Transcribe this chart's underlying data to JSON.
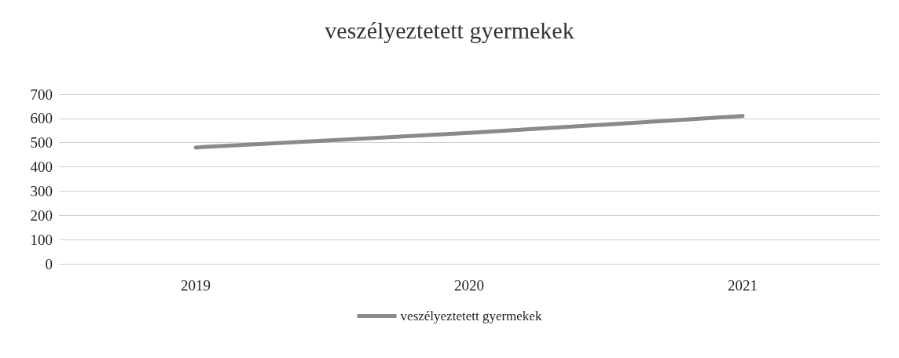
{
  "chart_data": {
    "type": "line",
    "title": "veszélyeztetett gyermekek",
    "categories": [
      "2019",
      "2020",
      "2021"
    ],
    "series": [
      {
        "name": "veszélyeztetett gyermekek",
        "color": "#8a8a8a",
        "values": [
          480,
          540,
          610
        ]
      }
    ],
    "ylim": [
      0,
      700
    ],
    "yticks": [
      0,
      100,
      200,
      300,
      400,
      500,
      600,
      700
    ],
    "grid": "y",
    "legend": "bottom",
    "marker": "none",
    "line_style": "solid"
  }
}
